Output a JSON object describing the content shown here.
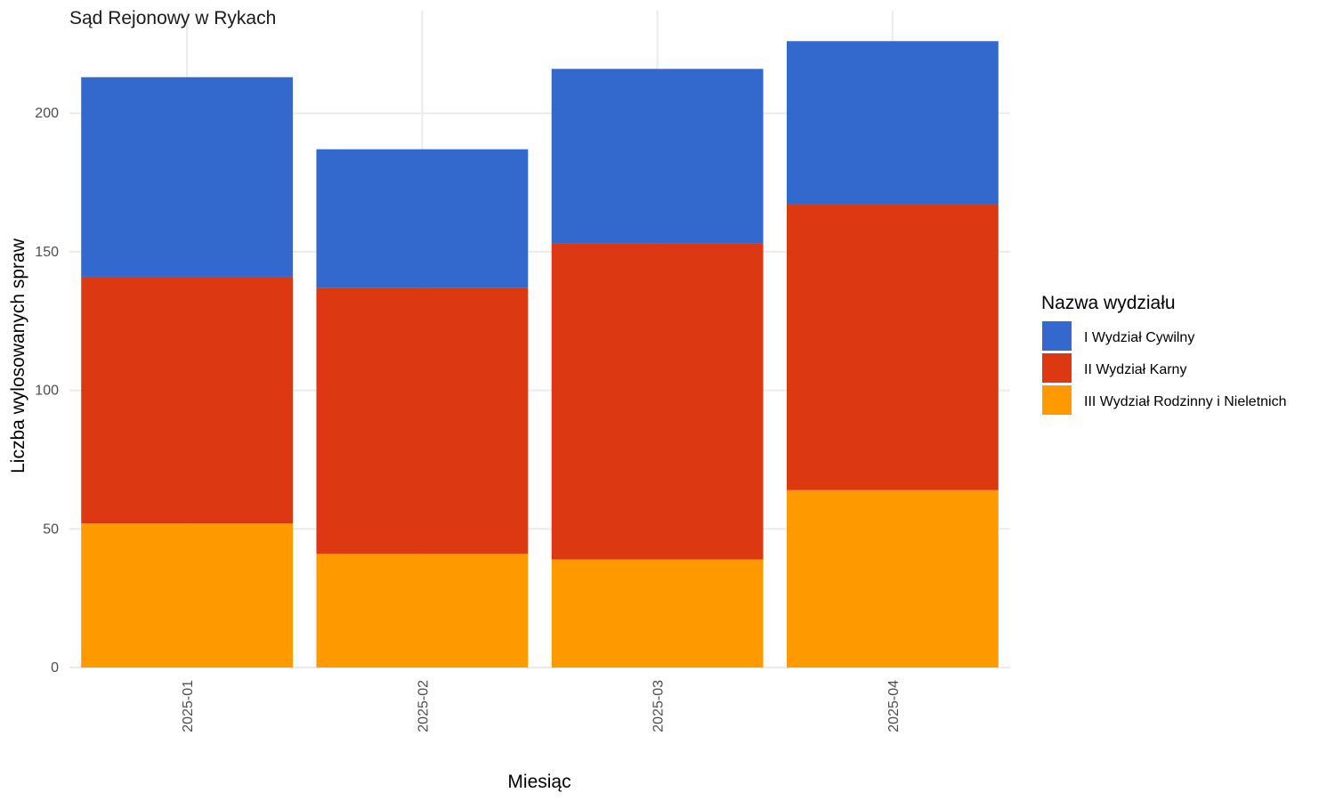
{
  "chart_data": {
    "type": "bar",
    "stacked": true,
    "title": "Sąd Rejonowy w Rykach",
    "xlabel": "Miesiąc",
    "ylabel": "Liczba wylosowanych spraw",
    "categories": [
      "2025-01",
      "2025-02",
      "2025-03",
      "2025-04"
    ],
    "ylim": [
      0,
      237
    ],
    "yticks": [
      0,
      50,
      100,
      150,
      200
    ],
    "grid": true,
    "legend": {
      "title": "Nazwa wydziału",
      "placement": "right"
    },
    "series": [
      {
        "name": "I Wydział Cywilny",
        "color": "#3369cc",
        "values": [
          72,
          50,
          63,
          59
        ]
      },
      {
        "name": "II Wydział Karny",
        "color": "#dc3912",
        "values": [
          89,
          96,
          114,
          103
        ]
      },
      {
        "name": "III Wydział Rodzinny i Nieletnich",
        "color": "#ff9900",
        "values": [
          52,
          41,
          39,
          64
        ]
      }
    ]
  }
}
